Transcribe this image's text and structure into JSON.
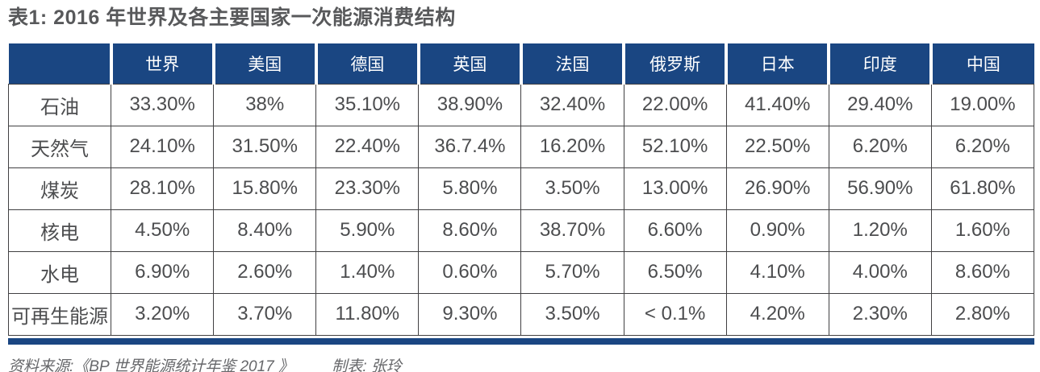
{
  "title": "表1: 2016 年世界及各主要国家一次能源消费结构",
  "footer": {
    "source": "资料来源:《BP 世界能源统计年鉴 2017 》",
    "maker": "制表: 张玲"
  },
  "colors": {
    "header_bg": "#1a4682",
    "header_text": "#ffffff",
    "body_text": "#4c4d4f",
    "cell_border": "#414042",
    "title_text": "#58595b",
    "footer_text": "#66676a",
    "bottom_bar": "#1a4682"
  },
  "chart_data": {
    "type": "table",
    "title": "表1: 2016 年世界及各主要国家一次能源消费结构",
    "columns": [
      "",
      "世界",
      "美国",
      "德国",
      "英国",
      "法国",
      "俄罗斯",
      "日本",
      "印度",
      "中国"
    ],
    "rows": [
      {
        "label": "石油",
        "values": [
          "33.30%",
          "38%",
          "35.10%",
          "38.90%",
          "32.40%",
          "22.00%",
          "41.40%",
          "29.40%",
          "19.00%"
        ]
      },
      {
        "label": "天然气",
        "values": [
          "24.10%",
          "31.50%",
          "22.40%",
          "36.7.4%",
          "16.20%",
          "52.10%",
          "22.50%",
          "6.20%",
          "6.20%"
        ]
      },
      {
        "label": "煤炭",
        "values": [
          "28.10%",
          "15.80%",
          "23.30%",
          "5.80%",
          "3.50%",
          "13.00%",
          "26.90%",
          "56.90%",
          "61.80%"
        ]
      },
      {
        "label": "核电",
        "values": [
          "4.50%",
          "8.40%",
          "5.90%",
          "8.60%",
          "38.70%",
          "6.60%",
          "0.90%",
          "1.20%",
          "1.60%"
        ]
      },
      {
        "label": "水电",
        "values": [
          "6.90%",
          "2.60%",
          "1.40%",
          "0.60%",
          "5.70%",
          "6.50%",
          "4.10%",
          "4.00%",
          "8.60%"
        ]
      },
      {
        "label": "可再生能源",
        "values": [
          "3.20%",
          "3.70%",
          "11.80%",
          "9.30%",
          "3.50%",
          "< 0.1%",
          "4.20%",
          "2.30%",
          "2.80%"
        ]
      }
    ]
  }
}
